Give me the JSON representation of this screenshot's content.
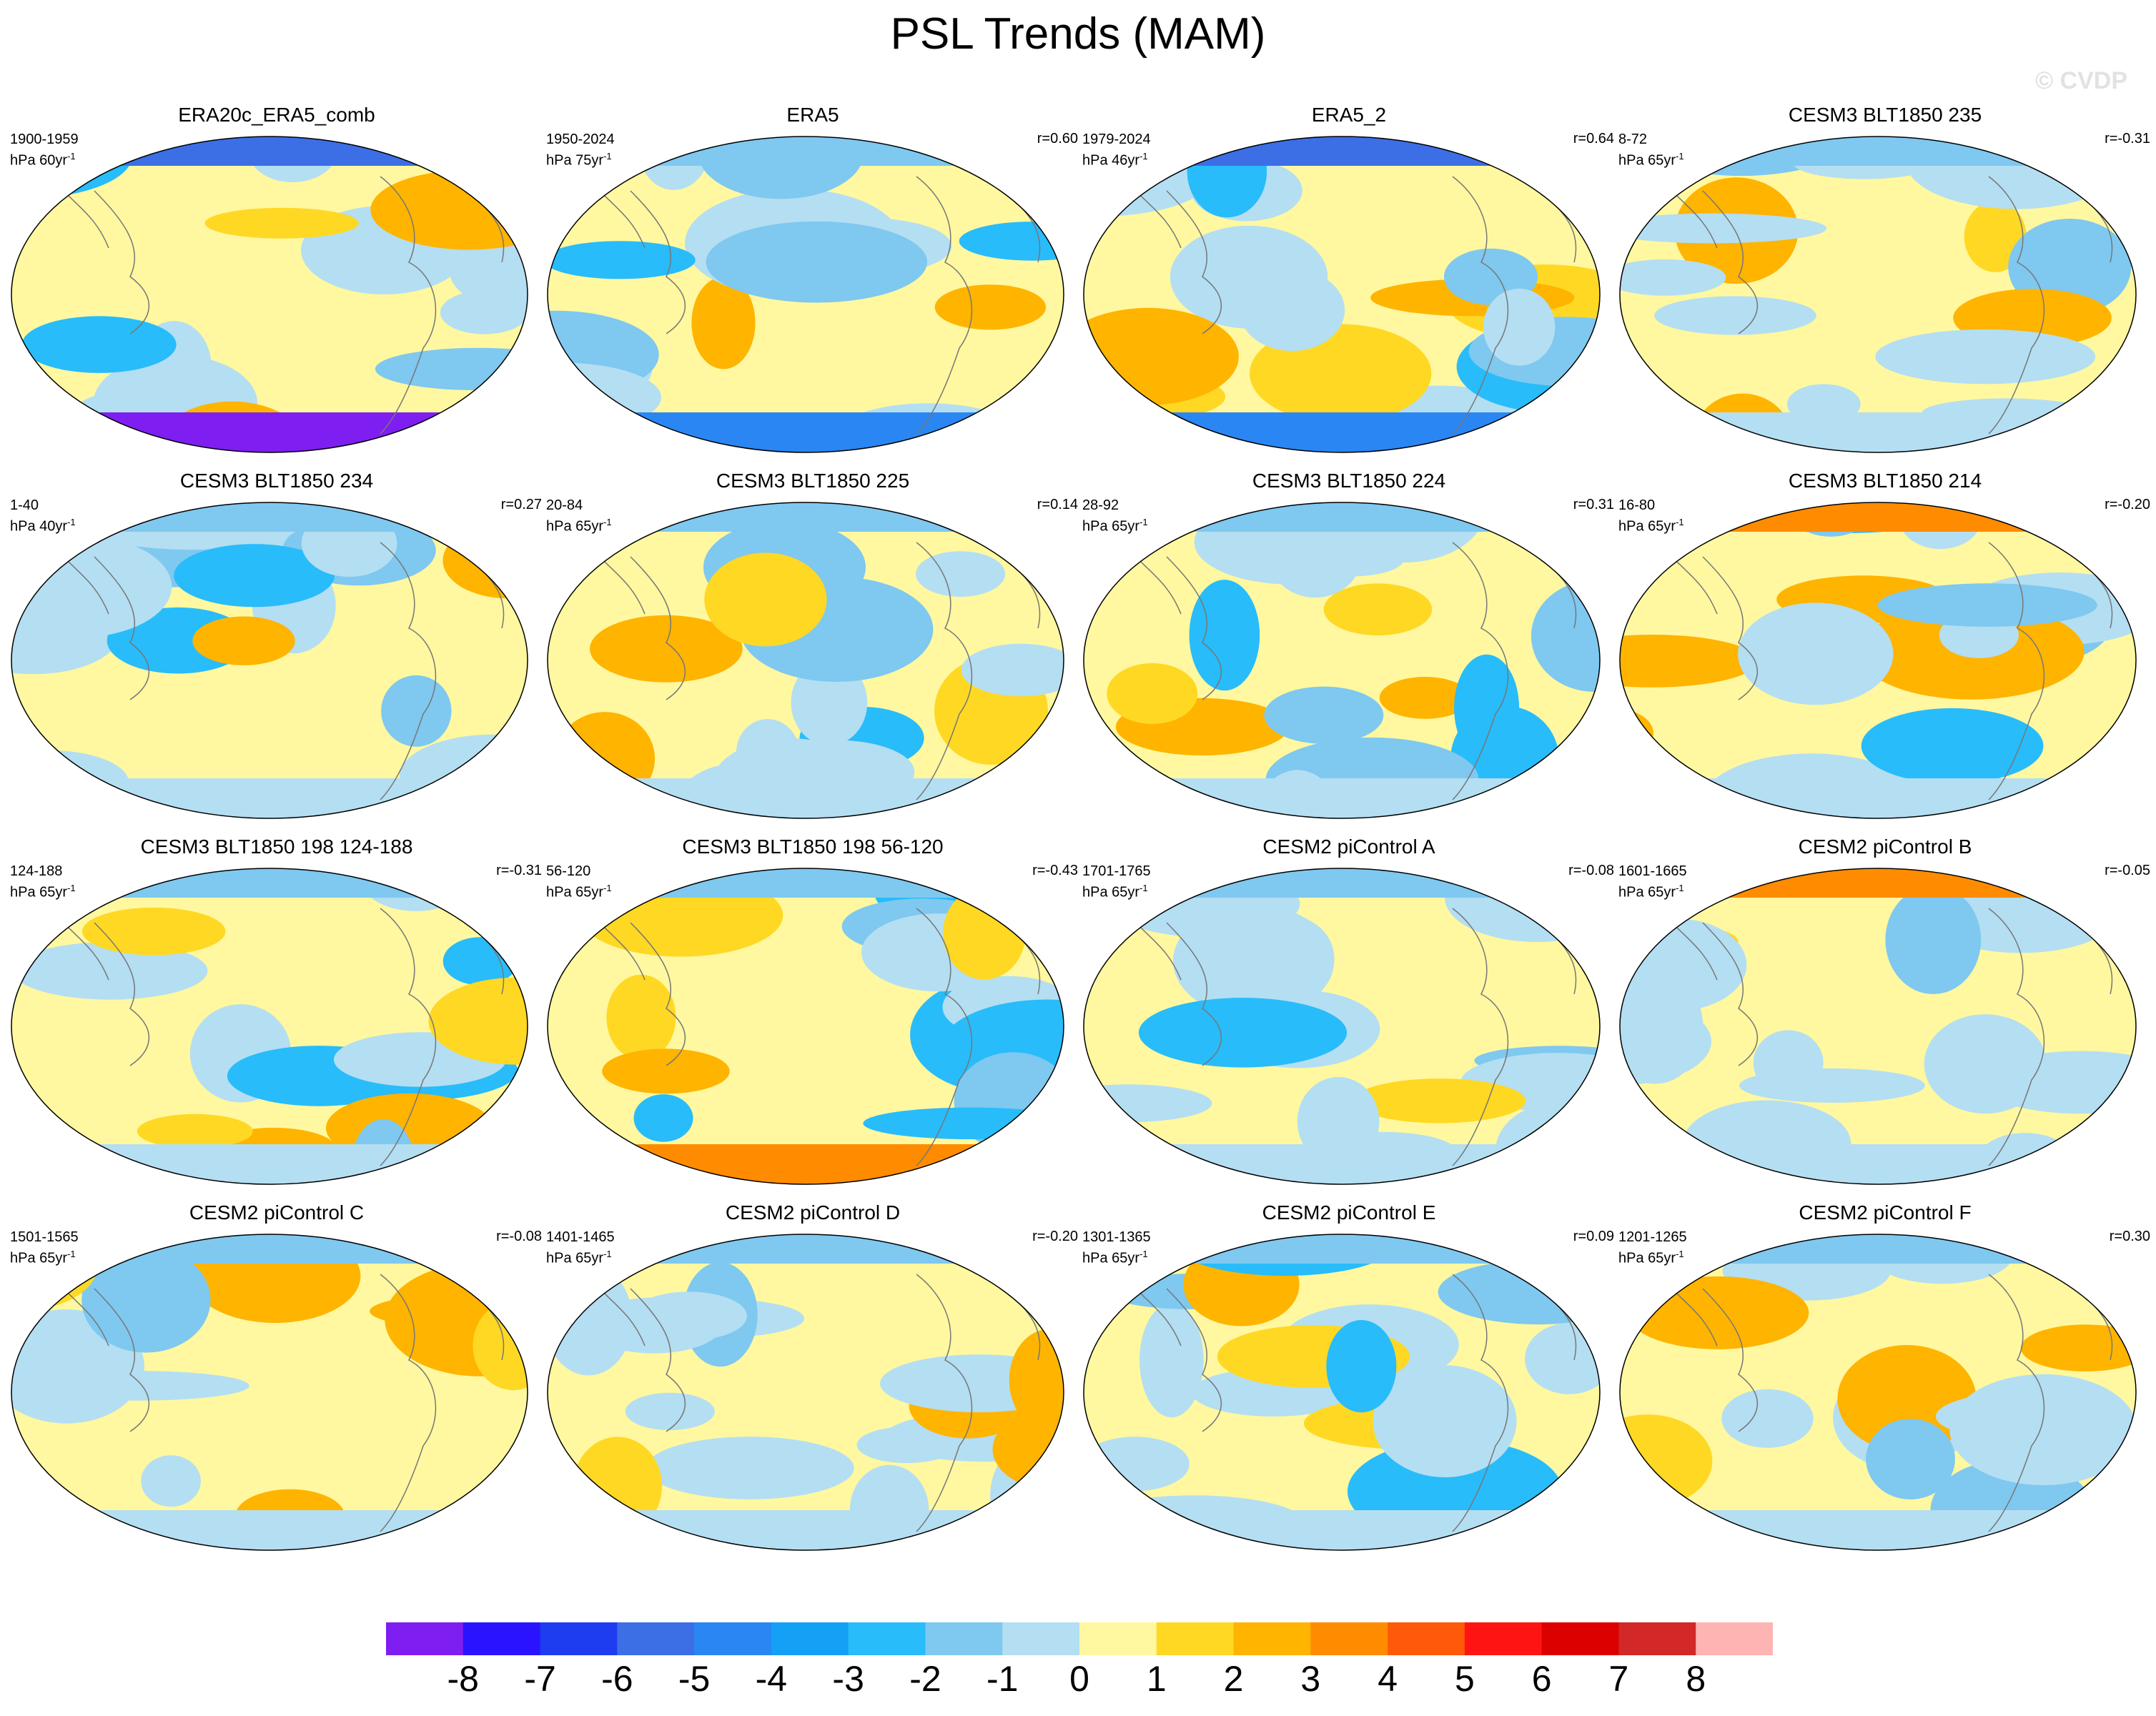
{
  "title": "PSL Trends (MAM)",
  "watermark": "© CVDP",
  "chart_data": {
    "type": "heatmap",
    "projection": "Robinson (global, centered on 180°)",
    "variable": "PSL",
    "season": "MAM",
    "colorbar": {
      "labels": [
        "-8",
        "-7",
        "-6",
        "-5",
        "-4",
        "-3",
        "-2",
        "-1",
        "0",
        "1",
        "2",
        "3",
        "4",
        "5",
        "6",
        "7",
        "8"
      ],
      "colors": [
        "#7f1ef0",
        "#2a14ff",
        "#1e3cf0",
        "#3c6ee6",
        "#2a86f2",
        "#14a0f5",
        "#28bcfa",
        "#7fc8f0",
        "#b4def2",
        "#fff8a0",
        "#ffd824",
        "#ffb400",
        "#ff8c00",
        "#ff5a0a",
        "#ff1414",
        "#dc0000",
        "#d22828",
        "#ffb4b4"
      ]
    },
    "panels": [
      {
        "title": "ERA20c_ERA5_comb",
        "period": "1900-1959",
        "units": "hPa 60yr",
        "units_sup": "-1",
        "r": ""
      },
      {
        "title": "ERA5",
        "period": "1950-2024",
        "units": "hPa 75yr",
        "units_sup": "-1",
        "r": "r=0.60"
      },
      {
        "title": "ERA5_2",
        "period": "1979-2024",
        "units": "hPa 46yr",
        "units_sup": "-1",
        "r": "r=0.64"
      },
      {
        "title": "CESM3 BLT1850 235",
        "period": "8-72",
        "units": "hPa 65yr",
        "units_sup": "-1",
        "r": "r=-0.31"
      },
      {
        "title": "CESM3 BLT1850 234",
        "period": "1-40",
        "units": "hPa 40yr",
        "units_sup": "-1",
        "r": "r=0.27"
      },
      {
        "title": "CESM3 BLT1850 225",
        "period": "20-84",
        "units": "hPa 65yr",
        "units_sup": "-1",
        "r": "r=0.14"
      },
      {
        "title": "CESM3 BLT1850 224",
        "period": "28-92",
        "units": "hPa 65yr",
        "units_sup": "-1",
        "r": "r=0.31"
      },
      {
        "title": "CESM3 BLT1850 214",
        "period": "16-80",
        "units": "hPa 65yr",
        "units_sup": "-1",
        "r": "r=-0.20"
      },
      {
        "title": "CESM3 BLT1850 198 124-188",
        "period": "124-188",
        "units": "hPa 65yr",
        "units_sup": "-1",
        "r": "r=-0.31"
      },
      {
        "title": "CESM3 BLT1850 198 56-120",
        "period": "56-120",
        "units": "hPa 65yr",
        "units_sup": "-1",
        "r": "r=-0.43"
      },
      {
        "title": "CESM2 piControl A",
        "period": "1701-1765",
        "units": "hPa 65yr",
        "units_sup": "-1",
        "r": "r=-0.08"
      },
      {
        "title": "CESM2 piControl B",
        "period": "1601-1665",
        "units": "hPa 65yr",
        "units_sup": "-1",
        "r": "r=-0.05"
      },
      {
        "title": "CESM2 piControl C",
        "period": "1501-1565",
        "units": "hPa 65yr",
        "units_sup": "-1",
        "r": "r=-0.08"
      },
      {
        "title": "CESM2 piControl D",
        "period": "1401-1465",
        "units": "hPa 65yr",
        "units_sup": "-1",
        "r": "r=-0.20"
      },
      {
        "title": "CESM2 piControl E",
        "period": "1301-1365",
        "units": "hPa 65yr",
        "units_sup": "-1",
        "r": "r=0.09"
      },
      {
        "title": "CESM2 piControl F",
        "period": "1201-1265",
        "units": "hPa 65yr",
        "units_sup": "-1",
        "r": "r=0.30"
      }
    ]
  }
}
